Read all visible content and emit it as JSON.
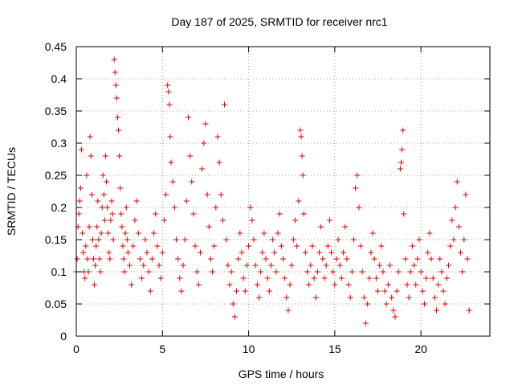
{
  "chart_data": {
    "type": "scatter",
    "title": "Day 187 of 2025, SRMTID for receiver nrc1",
    "xlabel": "GPS time / hours",
    "ylabel": "SRMTID / TECUs",
    "xlim": [
      0,
      24
    ],
    "ylim": [
      0,
      0.45
    ],
    "xticks": [
      0,
      5,
      10,
      15,
      20
    ],
    "yticks": [
      0,
      0.05,
      0.1,
      0.15,
      0.2,
      0.25,
      0.3,
      0.35,
      0.4,
      0.45
    ],
    "grid": true,
    "marker": "+",
    "color": "#e00000",
    "series": [
      {
        "name": "SRMTID",
        "points": [
          [
            0.0,
            0.1
          ],
          [
            0.05,
            0.12
          ],
          [
            0.1,
            0.17
          ],
          [
            0.15,
            0.19
          ],
          [
            0.2,
            0.21
          ],
          [
            0.25,
            0.23
          ],
          [
            0.3,
            0.29
          ],
          [
            0.35,
            0.16
          ],
          [
            0.4,
            0.13
          ],
          [
            0.45,
            0.1
          ],
          [
            0.5,
            0.09
          ],
          [
            0.55,
            0.14
          ],
          [
            0.6,
            0.25
          ],
          [
            0.65,
            0.12
          ],
          [
            0.7,
            0.1
          ],
          [
            0.75,
            0.17
          ],
          [
            0.8,
            0.31
          ],
          [
            0.85,
            0.28
          ],
          [
            0.9,
            0.22
          ],
          [
            0.95,
            0.15
          ],
          [
            1.0,
            0.12
          ],
          [
            1.05,
            0.08
          ],
          [
            1.1,
            0.11
          ],
          [
            1.15,
            0.14
          ],
          [
            1.2,
            0.17
          ],
          [
            1.25,
            0.21
          ],
          [
            1.3,
            0.15
          ],
          [
            1.35,
            0.12
          ],
          [
            1.4,
            0.1
          ],
          [
            1.45,
            0.16
          ],
          [
            1.5,
            0.2
          ],
          [
            1.55,
            0.25
          ],
          [
            1.6,
            0.22
          ],
          [
            1.65,
            0.18
          ],
          [
            1.7,
            0.28
          ],
          [
            1.75,
            0.24
          ],
          [
            1.8,
            0.2
          ],
          [
            1.85,
            0.16
          ],
          [
            1.9,
            0.13
          ],
          [
            1.95,
            0.12
          ],
          [
            2.0,
            0.18
          ],
          [
            2.05,
            0.21
          ],
          [
            2.1,
            0.19
          ],
          [
            2.15,
            0.15
          ],
          [
            2.2,
            0.43
          ],
          [
            2.25,
            0.41
          ],
          [
            2.3,
            0.39
          ],
          [
            2.35,
            0.37
          ],
          [
            2.4,
            0.34
          ],
          [
            2.45,
            0.32
          ],
          [
            2.5,
            0.28
          ],
          [
            2.55,
            0.23
          ],
          [
            2.6,
            0.19
          ],
          [
            2.65,
            0.17
          ],
          [
            2.7,
            0.14
          ],
          [
            2.75,
            0.12
          ],
          [
            2.8,
            0.1
          ],
          [
            2.85,
            0.16
          ],
          [
            2.9,
            0.2
          ],
          [
            2.95,
            0.15
          ],
          [
            3.0,
            0.13
          ],
          [
            3.1,
            0.11
          ],
          [
            3.2,
            0.08
          ],
          [
            3.3,
            0.14
          ],
          [
            3.4,
            0.18
          ],
          [
            3.5,
            0.21
          ],
          [
            3.6,
            0.16
          ],
          [
            3.7,
            0.12
          ],
          [
            3.8,
            0.09
          ],
          [
            3.9,
            0.11
          ],
          [
            4.0,
            0.15
          ],
          [
            4.1,
            0.13
          ],
          [
            4.2,
            0.1
          ],
          [
            4.3,
            0.07
          ],
          [
            4.4,
            0.12
          ],
          [
            4.5,
            0.16
          ],
          [
            4.6,
            0.19
          ],
          [
            4.7,
            0.14
          ],
          [
            4.8,
            0.11
          ],
          [
            4.9,
            0.09
          ],
          [
            5.0,
            0.13
          ],
          [
            5.1,
            0.18
          ],
          [
            5.2,
            0.22
          ],
          [
            5.3,
            0.39
          ],
          [
            5.35,
            0.38
          ],
          [
            5.4,
            0.36
          ],
          [
            5.45,
            0.31
          ],
          [
            5.5,
            0.27
          ],
          [
            5.6,
            0.24
          ],
          [
            5.7,
            0.2
          ],
          [
            5.8,
            0.15
          ],
          [
            5.9,
            0.12
          ],
          [
            6.0,
            0.09
          ],
          [
            6.1,
            0.07
          ],
          [
            6.2,
            0.11
          ],
          [
            6.3,
            0.15
          ],
          [
            6.4,
            0.21
          ],
          [
            6.5,
            0.34
          ],
          [
            6.6,
            0.28
          ],
          [
            6.7,
            0.24
          ],
          [
            6.8,
            0.19
          ],
          [
            6.9,
            0.14
          ],
          [
            7.0,
            0.1
          ],
          [
            7.1,
            0.08
          ],
          [
            7.2,
            0.13
          ],
          [
            7.3,
            0.26
          ],
          [
            7.4,
            0.3
          ],
          [
            7.5,
            0.33
          ],
          [
            7.6,
            0.22
          ],
          [
            7.7,
            0.17
          ],
          [
            7.8,
            0.12
          ],
          [
            7.9,
            0.1
          ],
          [
            8.0,
            0.14
          ],
          [
            8.1,
            0.2
          ],
          [
            8.2,
            0.31
          ],
          [
            8.3,
            0.27
          ],
          [
            8.4,
            0.22
          ],
          [
            8.5,
            0.18
          ],
          [
            8.6,
            0.36
          ],
          [
            8.7,
            0.15
          ],
          [
            8.8,
            0.11
          ],
          [
            8.9,
            0.08
          ],
          [
            9.0,
            0.1
          ],
          [
            9.1,
            0.05
          ],
          [
            9.2,
            0.03
          ],
          [
            9.3,
            0.07
          ],
          [
            9.4,
            0.12
          ],
          [
            9.5,
            0.16
          ],
          [
            9.6,
            0.13
          ],
          [
            9.7,
            0.09
          ],
          [
            9.8,
            0.07
          ],
          [
            9.9,
            0.11
          ],
          [
            10.0,
            0.14
          ],
          [
            10.1,
            0.2
          ],
          [
            10.2,
            0.18
          ],
          [
            10.3,
            0.15
          ],
          [
            10.4,
            0.11
          ],
          [
            10.5,
            0.08
          ],
          [
            10.6,
            0.06
          ],
          [
            10.7,
            0.1
          ],
          [
            10.8,
            0.13
          ],
          [
            10.9,
            0.16
          ],
          [
            11.0,
            0.12
          ],
          [
            11.1,
            0.09
          ],
          [
            11.2,
            0.07
          ],
          [
            11.3,
            0.11
          ],
          [
            11.4,
            0.15
          ],
          [
            11.5,
            0.13
          ],
          [
            11.6,
            0.1
          ],
          [
            11.7,
            0.16
          ],
          [
            11.8,
            0.19
          ],
          [
            11.9,
            0.14
          ],
          [
            12.0,
            0.12
          ],
          [
            12.1,
            0.09
          ],
          [
            12.2,
            0.06
          ],
          [
            12.3,
            0.04
          ],
          [
            12.4,
            0.08
          ],
          [
            12.5,
            0.11
          ],
          [
            12.6,
            0.15
          ],
          [
            12.7,
            0.18
          ],
          [
            12.8,
            0.14
          ],
          [
            12.9,
            0.21
          ],
          [
            13.0,
            0.32
          ],
          [
            13.05,
            0.31
          ],
          [
            13.1,
            0.28
          ],
          [
            13.15,
            0.25
          ],
          [
            13.2,
            0.19
          ],
          [
            13.3,
            0.13
          ],
          [
            13.4,
            0.1
          ],
          [
            13.5,
            0.08
          ],
          [
            13.6,
            0.11
          ],
          [
            13.7,
            0.14
          ],
          [
            13.8,
            0.09
          ],
          [
            13.9,
            0.06
          ],
          [
            14.0,
            0.1
          ],
          [
            14.1,
            0.13
          ],
          [
            14.2,
            0.17
          ],
          [
            14.3,
            0.12
          ],
          [
            14.4,
            0.09
          ],
          [
            14.5,
            0.11
          ],
          [
            14.6,
            0.14
          ],
          [
            14.7,
            0.18
          ],
          [
            14.8,
            0.13
          ],
          [
            14.9,
            0.1
          ],
          [
            15.0,
            0.08
          ],
          [
            15.1,
            0.12
          ],
          [
            15.2,
            0.15
          ],
          [
            15.3,
            0.11
          ],
          [
            15.4,
            0.09
          ],
          [
            15.5,
            0.13
          ],
          [
            15.6,
            0.17
          ],
          [
            15.7,
            0.12
          ],
          [
            15.8,
            0.08
          ],
          [
            15.9,
            0.06
          ],
          [
            16.0,
            0.1
          ],
          [
            16.1,
            0.15
          ],
          [
            16.2,
            0.23
          ],
          [
            16.3,
            0.25
          ],
          [
            16.4,
            0.2
          ],
          [
            16.5,
            0.14
          ],
          [
            16.6,
            0.1
          ],
          [
            16.7,
            0.06
          ],
          [
            16.8,
            0.02
          ],
          [
            16.9,
            0.05
          ],
          [
            17.0,
            0.09
          ],
          [
            17.1,
            0.13
          ],
          [
            17.2,
            0.16
          ],
          [
            17.3,
            0.12
          ],
          [
            17.4,
            0.09
          ],
          [
            17.5,
            0.07
          ],
          [
            17.6,
            0.11
          ],
          [
            17.7,
            0.14
          ],
          [
            17.8,
            0.1
          ],
          [
            17.9,
            0.07
          ],
          [
            18.0,
            0.05
          ],
          [
            18.1,
            0.08
          ],
          [
            18.2,
            0.11
          ],
          [
            18.3,
            0.06
          ],
          [
            18.4,
            0.04
          ],
          [
            18.5,
            0.03
          ],
          [
            18.6,
            0.07
          ],
          [
            18.7,
            0.1
          ],
          [
            18.8,
            0.26
          ],
          [
            18.85,
            0.27
          ],
          [
            18.9,
            0.29
          ],
          [
            18.95,
            0.32
          ],
          [
            19.0,
            0.19
          ],
          [
            19.1,
            0.12
          ],
          [
            19.2,
            0.08
          ],
          [
            19.3,
            0.06
          ],
          [
            19.4,
            0.1
          ],
          [
            19.5,
            0.14
          ],
          [
            19.6,
            0.11
          ],
          [
            19.7,
            0.08
          ],
          [
            19.8,
            0.12
          ],
          [
            19.9,
            0.15
          ],
          [
            20.0,
            0.1
          ],
          [
            20.1,
            0.07
          ],
          [
            20.2,
            0.05
          ],
          [
            20.3,
            0.09
          ],
          [
            20.4,
            0.13
          ],
          [
            20.5,
            0.16
          ],
          [
            20.6,
            0.12
          ],
          [
            20.7,
            0.09
          ],
          [
            20.8,
            0.06
          ],
          [
            20.9,
            0.04
          ],
          [
            21.0,
            0.08
          ],
          [
            21.1,
            0.12
          ],
          [
            21.2,
            0.1
          ],
          [
            21.3,
            0.07
          ],
          [
            21.4,
            0.05
          ],
          [
            21.5,
            0.09
          ],
          [
            21.6,
            0.11
          ],
          [
            21.7,
            0.14
          ],
          [
            21.8,
            0.18
          ],
          [
            21.9,
            0.15
          ],
          [
            22.0,
            0.2
          ],
          [
            22.1,
            0.24
          ],
          [
            22.2,
            0.17
          ],
          [
            22.3,
            0.13
          ],
          [
            22.4,
            0.1
          ],
          [
            22.5,
            0.15
          ],
          [
            22.6,
            0.22
          ],
          [
            22.7,
            0.12
          ],
          [
            22.8,
            0.04
          ]
        ]
      }
    ]
  }
}
